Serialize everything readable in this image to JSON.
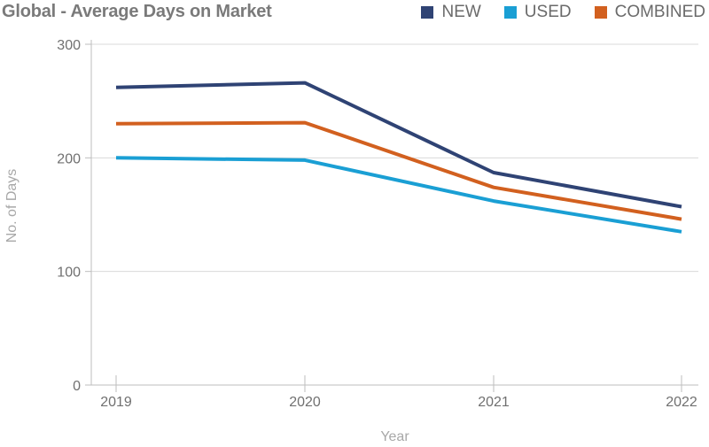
{
  "chart_data": {
    "type": "line",
    "title": "Global - Average Days on Market",
    "xlabel": "Year",
    "ylabel": "No. of Days",
    "categories": [
      "2019",
      "2020",
      "2021",
      "2022"
    ],
    "ylim": [
      0,
      300
    ],
    "yticks": [
      0,
      100,
      200,
      300
    ],
    "grid": true,
    "legend_position": "top-right",
    "series": [
      {
        "name": "NEW",
        "color": "#2f4374",
        "values": [
          262,
          266,
          187,
          157
        ]
      },
      {
        "name": "USED",
        "color": "#1a9fd4",
        "values": [
          200,
          198,
          162,
          135
        ]
      },
      {
        "name": "COMBINED",
        "color": "#d2601f",
        "values": [
          230,
          231,
          174,
          146
        ]
      }
    ]
  }
}
